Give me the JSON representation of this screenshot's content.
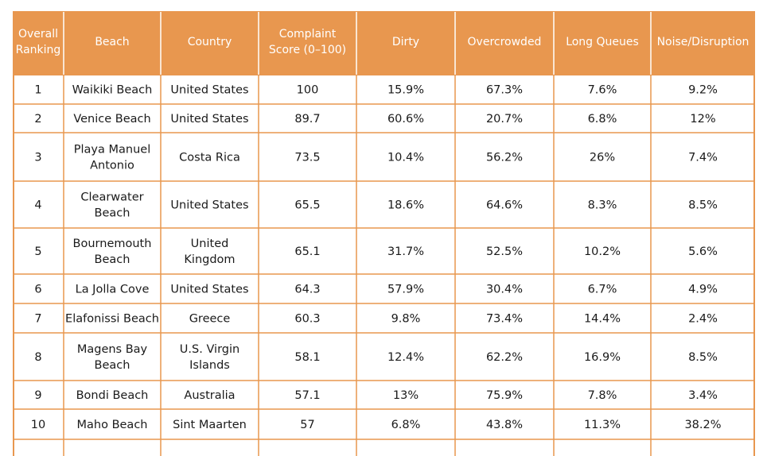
{
  "chart_data": {
    "type": "table",
    "columns": [
      [
        "Overall",
        "Ranking"
      ],
      [
        "Beach"
      ],
      [
        "Country"
      ],
      [
        "Complaint",
        "Score (0–100)"
      ],
      [
        "Dirty"
      ],
      [
        "Overcrowded"
      ],
      [
        "Long Queues"
      ],
      [
        "Noise/Disruption"
      ]
    ],
    "rows": [
      {
        "rank": "1",
        "beach": [
          "Waikiki Beach"
        ],
        "country": [
          "United States"
        ],
        "score": "100",
        "dirty": "15.9%",
        "overcrowded": "67.3%",
        "queues": "7.6%",
        "noise": "9.2%"
      },
      {
        "rank": "2",
        "beach": [
          "Venice Beach"
        ],
        "country": [
          "United States"
        ],
        "score": "89.7",
        "dirty": "60.6%",
        "overcrowded": "20.7%",
        "queues": "6.8%",
        "noise": "12%"
      },
      {
        "rank": "3",
        "beach": [
          "Playa Manuel",
          "Antonio"
        ],
        "country": [
          "Costa Rica"
        ],
        "score": "73.5",
        "dirty": "10.4%",
        "overcrowded": "56.2%",
        "queues": "26%",
        "noise": "7.4%"
      },
      {
        "rank": "4",
        "beach": [
          "Clearwater",
          "Beach"
        ],
        "country": [
          "United States"
        ],
        "score": "65.5",
        "dirty": "18.6%",
        "overcrowded": "64.6%",
        "queues": "8.3%",
        "noise": "8.5%"
      },
      {
        "rank": "5",
        "beach": [
          "Bournemouth",
          "Beach"
        ],
        "country": [
          "United",
          "Kingdom"
        ],
        "score": "65.1",
        "dirty": "31.7%",
        "overcrowded": "52.5%",
        "queues": "10.2%",
        "noise": "5.6%"
      },
      {
        "rank": "6",
        "beach": [
          "La Jolla Cove"
        ],
        "country": [
          "United States"
        ],
        "score": "64.3",
        "dirty": "57.9%",
        "overcrowded": "30.4%",
        "queues": "6.7%",
        "noise": "4.9%"
      },
      {
        "rank": "7",
        "beach": [
          "Elafonissi Beach"
        ],
        "country": [
          "Greece"
        ],
        "score": "60.3",
        "dirty": "9.8%",
        "overcrowded": "73.4%",
        "queues": "14.4%",
        "noise": "2.4%"
      },
      {
        "rank": "8",
        "beach": [
          "Magens Bay",
          "Beach"
        ],
        "country": [
          "U.S. Virgin",
          "Islands"
        ],
        "score": "58.1",
        "dirty": "12.4%",
        "overcrowded": "62.2%",
        "queues": "16.9%",
        "noise": "8.5%"
      },
      {
        "rank": "9",
        "beach": [
          "Bondi Beach"
        ],
        "country": [
          "Australia"
        ],
        "score": "57.1",
        "dirty": "13%",
        "overcrowded": "75.9%",
        "queues": "7.8%",
        "noise": "3.4%"
      },
      {
        "rank": "10",
        "beach": [
          "Maho Beach"
        ],
        "country": [
          "Sint Maarten"
        ],
        "score": "57",
        "dirty": "6.8%",
        "overcrowded": "43.8%",
        "queues": "11.3%",
        "noise": "38.2%"
      }
    ],
    "colors": {
      "header": "#E8974F",
      "header_text": "#ffffff",
      "grid": "#E8974F",
      "text": "#1a1a1a"
    }
  }
}
